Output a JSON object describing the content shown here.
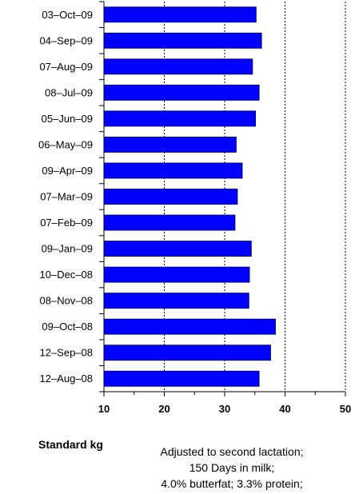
{
  "chart_data": {
    "type": "bar",
    "orientation": "horizontal",
    "categories": [
      "03-Oct-09",
      "04-Sep-09",
      "07-Aug-09",
      "08-Jul-09",
      "05-Jun-09",
      "06-May-09",
      "09-Apr-09",
      "07-Mar-09",
      "07-Feb-09",
      "09-Jan-09",
      "10-Dec-08",
      "08-Nov-08",
      "09-Oct-08",
      "12-Sep-08",
      "12-Aug-08"
    ],
    "category_labels": [
      "03–Oct–09",
      "04–Sep–09",
      "07–Aug–09",
      "08–Jul–09",
      "05–Jun–09",
      "06–May–09",
      "09–Apr–09",
      "07–Mar–09",
      "07–Feb–09",
      "09–Jan–09",
      "10–Dec–08",
      "08–Nov–08",
      "09–Oct–08",
      "12–Sep–08",
      "12–Aug–08"
    ],
    "values": [
      35.2,
      36.1,
      34.6,
      35.7,
      35.1,
      31.9,
      32.9,
      32.1,
      31.7,
      34.4,
      34.1,
      34.0,
      38.4,
      37.6,
      35.7
    ],
    "xlim": [
      10,
      50
    ],
    "xticks": [
      10,
      20,
      30,
      40,
      50
    ],
    "grid": "vertical dashed",
    "bar_color": "#0000ff",
    "bar_edge_color": "#000080",
    "xlabel": "Standard kg",
    "note": [
      "Adjusted to second lactation;",
      "150 Days in milk;",
      "4.0% butterfat; 3.3% protein;"
    ]
  }
}
